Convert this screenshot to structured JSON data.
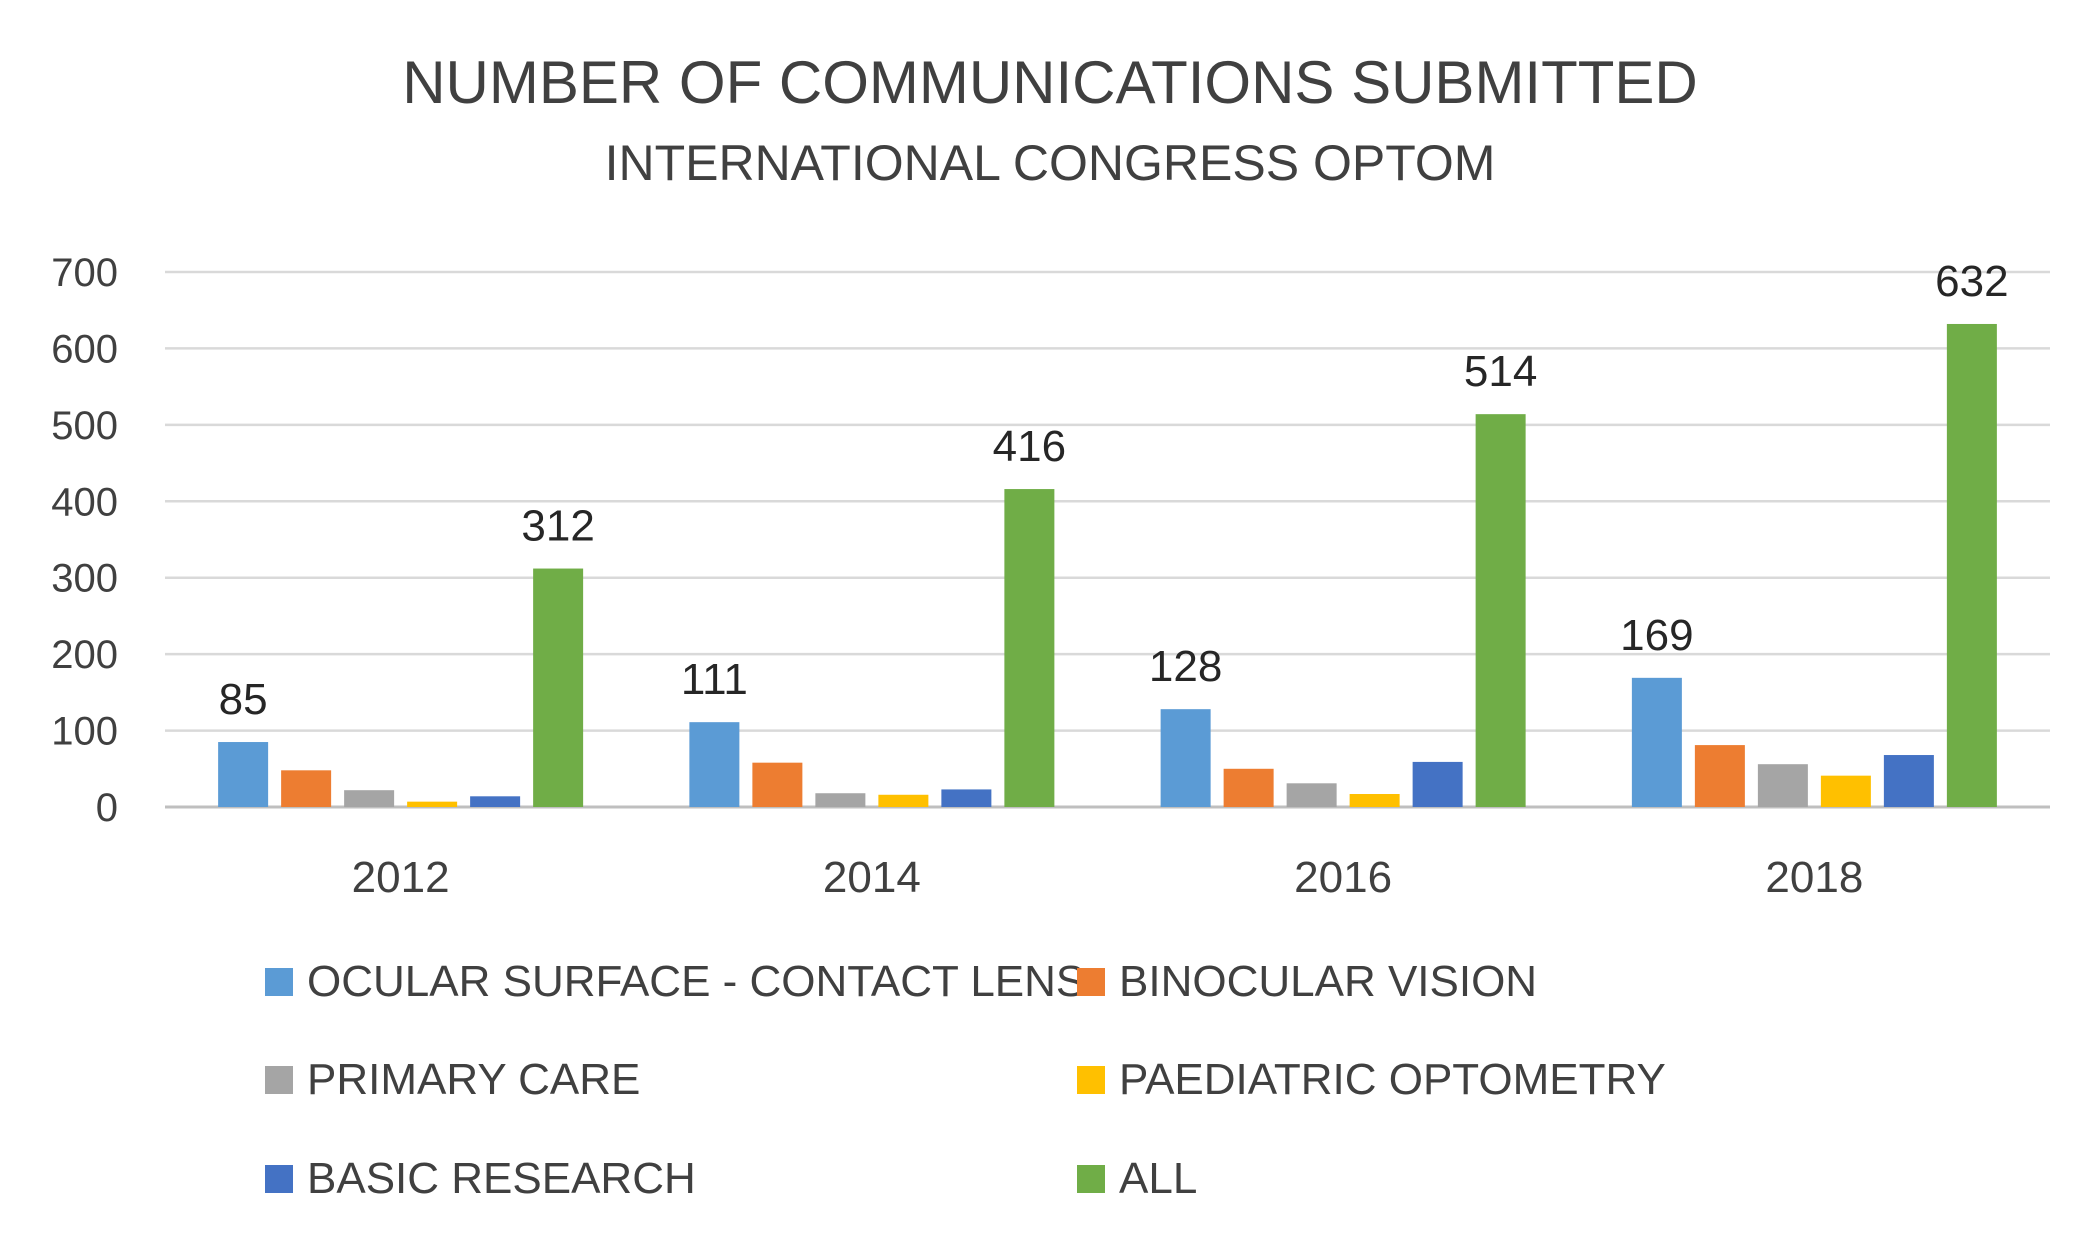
{
  "chart_data": {
    "type": "bar",
    "title": "NUMBER OF COMMUNICATIONS SUBMITTED",
    "subtitle": "INTERNATIONAL CONGRESS OPTOM",
    "categories": [
      "2012",
      "2014",
      "2016",
      "2018"
    ],
    "ylim": [
      0,
      700
    ],
    "yticks": [
      0,
      100,
      200,
      300,
      400,
      500,
      600,
      700
    ],
    "grid": true,
    "legend_position": "bottom",
    "series": [
      {
        "name": "OCULAR SURFACE - CONTACT LENS",
        "color": "#5B9BD5",
        "values": [
          85,
          111,
          128,
          169
        ],
        "show_labels": true
      },
      {
        "name": "BINOCULAR VISION",
        "color": "#ED7D31",
        "values": [
          48,
          58,
          50,
          81
        ],
        "show_labels": false
      },
      {
        "name": "PRIMARY CARE",
        "color": "#A5A5A5",
        "values": [
          22,
          18,
          31,
          56
        ],
        "show_labels": false
      },
      {
        "name": "PAEDIATRIC OPTOMETRY",
        "color": "#FFC000",
        "values": [
          7,
          16,
          17,
          41
        ],
        "show_labels": false
      },
      {
        "name": "BASIC RESEARCH",
        "color": "#4472C4",
        "values": [
          14,
          23,
          59,
          68
        ],
        "show_labels": false
      },
      {
        "name": "ALL",
        "color": "#70AD47",
        "values": [
          312,
          416,
          514,
          632
        ],
        "show_labels": true
      }
    ]
  }
}
